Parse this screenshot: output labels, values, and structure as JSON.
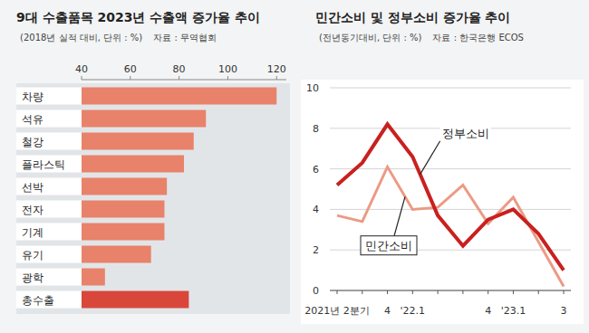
{
  "chart_data": [
    {
      "type": "bar",
      "orientation": "horizontal",
      "title": "9대 수출품목 2023년 수출액 증가율 추이",
      "subtitle": "(2018년 실적 대비, 단위 : %)",
      "source": "자료 : 무역협회",
      "categories": [
        "차량",
        "석유",
        "철강",
        "플라스틱",
        "선박",
        "전자",
        "기계",
        "유기",
        "광학",
        "총수출"
      ],
      "values": [
        120,
        91,
        86,
        82,
        75,
        74,
        74,
        68.5,
        49.6,
        84
      ],
      "colors": [
        "#e8826a",
        "#e8826a",
        "#e8826a",
        "#e8826a",
        "#e8826a",
        "#e8826a",
        "#e8826a",
        "#e8826a",
        "#e8826a",
        "#d9473b"
      ],
      "xlim": [
        40,
        124
      ],
      "xticks": [
        40,
        60,
        80,
        100,
        120
      ]
    },
    {
      "type": "line",
      "title": "민간소비 및 정부소비 증가율 추이",
      "subtitle": "(전년동기대비, 단위 : %)",
      "source": "자료 : 한국은행 ECOS",
      "categories": [
        "2021년 2분기",
        null,
        "4",
        "'22.1",
        null,
        null,
        "4",
        "'23.1",
        null,
        "3"
      ],
      "series": [
        {
          "name": "정부소비",
          "color": "#c8211f",
          "values": [
            5.2,
            6.3,
            8.2,
            6.6,
            3.7,
            2.2,
            3.5,
            4.0,
            2.8,
            1.0
          ]
        },
        {
          "name": "민간소비",
          "color": "#ec9a84",
          "values": [
            3.7,
            3.4,
            6.1,
            4.0,
            4.1,
            5.2,
            3.3,
            4.6,
            2.4,
            0.2
          ]
        }
      ],
      "ylim": [
        0,
        10
      ],
      "yticks": [
        0,
        2,
        4,
        6,
        8,
        10
      ],
      "grid": true
    }
  ]
}
